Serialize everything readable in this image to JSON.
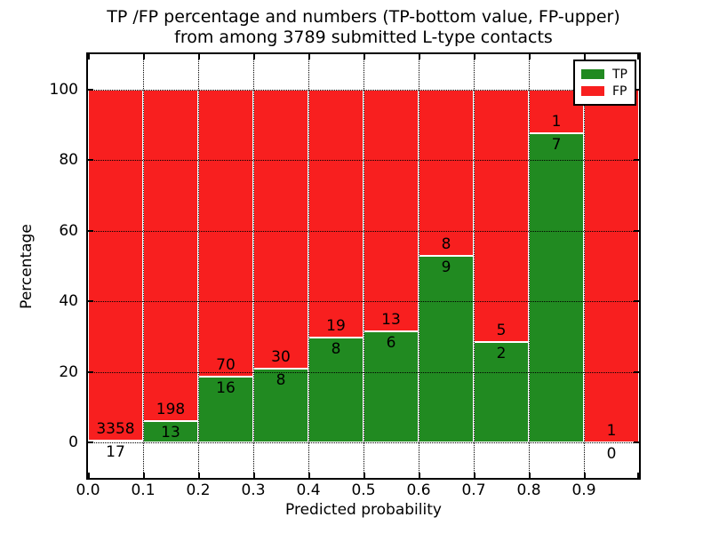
{
  "title": {
    "line1": "TP /FP percentage and numbers (TP-bottom value, FP-upper)",
    "line2": "from among 3789 submitted L-type contacts"
  },
  "colors": {
    "tp": "#218a21",
    "fp": "#f81f1f",
    "bar_edge": "#ffffff",
    "grid": "#000000",
    "spine": "#000000",
    "background": "#ffffff"
  },
  "legend": {
    "entries": [
      {
        "label": "TP",
        "color_key": "tp"
      },
      {
        "label": "FP",
        "color_key": "fp"
      }
    ],
    "position": "upper-right"
  },
  "chart_data": {
    "type": "bar",
    "stacked": true,
    "normalized_to_percent": true,
    "title": "TP /FP percentage and numbers (TP-bottom value, FP-upper)\nfrom among 3789 submitted L-type contacts",
    "xlabel": "Predicted probability",
    "ylabel": "Percentage",
    "total_contacts": 3789,
    "bins": [
      {
        "range": [
          0.0,
          0.1
        ],
        "tp": 17,
        "fp": 3358
      },
      {
        "range": [
          0.1,
          0.2
        ],
        "tp": 13,
        "fp": 198
      },
      {
        "range": [
          0.2,
          0.3
        ],
        "tp": 16,
        "fp": 70
      },
      {
        "range": [
          0.3,
          0.4
        ],
        "tp": 8,
        "fp": 30
      },
      {
        "range": [
          0.4,
          0.5
        ],
        "tp": 8,
        "fp": 19
      },
      {
        "range": [
          0.5,
          0.6
        ],
        "tp": 6,
        "fp": 13
      },
      {
        "range": [
          0.6,
          0.7
        ],
        "tp": 9,
        "fp": 8
      },
      {
        "range": [
          0.7,
          0.8
        ],
        "tp": 2,
        "fp": 5
      },
      {
        "range": [
          0.8,
          0.9
        ],
        "tp": 7,
        "fp": 1
      },
      {
        "range": [
          0.9,
          1.0
        ],
        "tp": 0,
        "fp": 1
      }
    ],
    "series": [
      {
        "name": "TP",
        "counts": [
          17,
          13,
          16,
          8,
          8,
          6,
          9,
          2,
          7,
          0
        ]
      },
      {
        "name": "FP",
        "counts": [
          3358,
          198,
          70,
          30,
          19,
          13,
          8,
          5,
          1,
          1
        ]
      }
    ],
    "xticks": [
      "0.0",
      "0.1",
      "0.2",
      "0.3",
      "0.4",
      "0.5",
      "0.6",
      "0.7",
      "0.8",
      "0.9"
    ],
    "yticks": [
      0,
      20,
      40,
      60,
      80,
      100
    ],
    "xlim": [
      0.0,
      1.0
    ],
    "ylim": [
      -10,
      110
    ],
    "grid": "dotted",
    "legend_position": "upper right"
  }
}
